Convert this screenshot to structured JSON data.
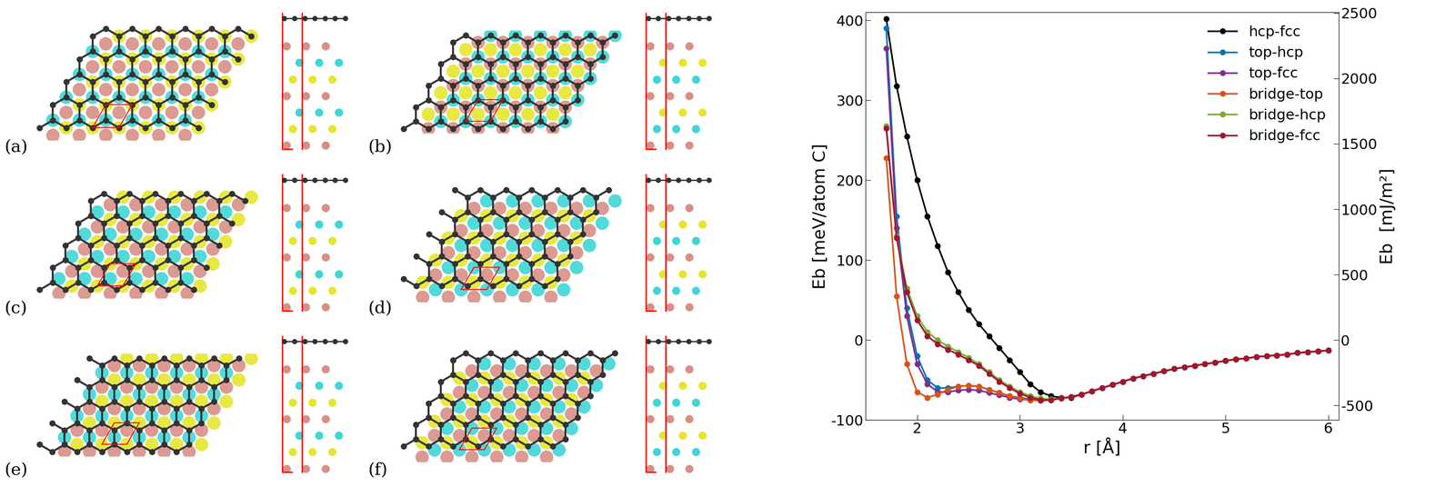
{
  "panel_labels": [
    "(a)",
    "(b)",
    "(c)",
    "(d)",
    "(e)",
    "(f)"
  ],
  "chart_data": {
    "type": "line",
    "xlabel": "r [Å]",
    "ylabel": "Eb [meV/atom C]",
    "y2label": "Eb  [mJ/m²]",
    "x": [
      1.7,
      1.8,
      1.9,
      2.0,
      2.1,
      2.2,
      2.3,
      2.4,
      2.5,
      2.6,
      2.7,
      2.8,
      2.9,
      3.0,
      3.1,
      3.2,
      3.3,
      3.4,
      3.5,
      3.6,
      3.7,
      3.8,
      3.9,
      4.0,
      4.1,
      4.2,
      4.3,
      4.4,
      4.5,
      4.6,
      4.7,
      4.8,
      4.9,
      5.0,
      5.1,
      5.2,
      5.3,
      5.4,
      5.5,
      5.6,
      5.7,
      5.8,
      5.9,
      6.0
    ],
    "xlim": [
      1.5,
      6.1
    ],
    "xticks": [
      2,
      3,
      4,
      5,
      6
    ],
    "ylim": [
      -100,
      410
    ],
    "yticks": [
      -100,
      0,
      100,
      200,
      300,
      400
    ],
    "y2lim": [
      -611,
      2505
    ],
    "y2ticks": [
      -500,
      0,
      500,
      1000,
      1500,
      2000,
      2500
    ],
    "legend": "upper right",
    "marker": "o",
    "line_style": "solid",
    "series": [
      {
        "name": "hcp-fcc",
        "color": "#000000",
        "values": [
          402,
          318,
          255,
          200,
          155,
          118,
          85,
          60,
          38,
          20,
          5,
          -10,
          -25,
          -40,
          -55,
          -65,
          -70,
          -72,
          -72,
          -68,
          -64,
          -60,
          -56,
          -52,
          -48,
          -45,
          -42,
          -39,
          -36,
          -34,
          -32,
          -30,
          -28,
          -26,
          -24,
          -23,
          -21,
          -20,
          -19,
          -18,
          -16,
          -15,
          -14,
          -13
        ]
      },
      {
        "name": "top-hcp",
        "color": "#0072BD",
        "values": [
          390,
          155,
          40,
          -20,
          -50,
          -60,
          -60,
          -58,
          -57,
          -58,
          -62,
          -66,
          -70,
          -72,
          -74,
          -74,
          -74,
          -73,
          -71,
          -68,
          -64,
          -60,
          -56,
          -52,
          -48,
          -45,
          -42,
          -39,
          -36,
          -34,
          -32,
          -30,
          -28,
          -26,
          -24,
          -23,
          -21,
          -20,
          -19,
          -18,
          -16,
          -15,
          -14,
          -13
        ]
      },
      {
        "name": "top-fcc",
        "color": "#7E2F8E",
        "values": [
          365,
          140,
          30,
          -30,
          -55,
          -65,
          -65,
          -63,
          -62,
          -63,
          -66,
          -69,
          -72,
          -74,
          -75,
          -75,
          -74,
          -73,
          -71,
          -68,
          -64,
          -60,
          -56,
          -52,
          -48,
          -45,
          -42,
          -39,
          -36,
          -34,
          -32,
          -30,
          -28,
          -26,
          -24,
          -23,
          -21,
          -20,
          -19,
          -18,
          -16,
          -15,
          -14,
          -13
        ]
      },
      {
        "name": "bridge-top",
        "color": "#D95319",
        "values": [
          228,
          55,
          -30,
          -65,
          -72,
          -68,
          -62,
          -58,
          -57,
          -58,
          -62,
          -66,
          -70,
          -73,
          -75,
          -76,
          -75,
          -73,
          -71,
          -68,
          -64,
          -60,
          -56,
          -52,
          -48,
          -45,
          -42,
          -39,
          -36,
          -34,
          -32,
          -30,
          -28,
          -26,
          -24,
          -23,
          -21,
          -20,
          -19,
          -18,
          -16,
          -15,
          -14,
          -13
        ]
      },
      {
        "name": "bridge-hcp",
        "color": "#77AC30",
        "values": [
          268,
          130,
          65,
          30,
          10,
          0,
          -8,
          -15,
          -22,
          -30,
          -40,
          -50,
          -58,
          -65,
          -70,
          -73,
          -74,
          -73,
          -71,
          -68,
          -64,
          -60,
          -56,
          -52,
          -48,
          -45,
          -42,
          -39,
          -36,
          -34,
          -32,
          -30,
          -28,
          -26,
          -24,
          -23,
          -21,
          -20,
          -19,
          -18,
          -16,
          -15,
          -14,
          -13
        ]
      },
      {
        "name": "bridge-fcc",
        "color": "#A2142F",
        "values": [
          265,
          128,
          60,
          25,
          5,
          -5,
          -12,
          -18,
          -25,
          -32,
          -42,
          -52,
          -60,
          -67,
          -72,
          -75,
          -75,
          -73,
          -71,
          -68,
          -64,
          -60,
          -56,
          -52,
          -48,
          -45,
          -42,
          -39,
          -36,
          -34,
          -32,
          -30,
          -28,
          -26,
          -24,
          -23,
          -21,
          -20,
          -19,
          -18,
          -16,
          -15,
          -14,
          -13
        ]
      }
    ]
  }
}
